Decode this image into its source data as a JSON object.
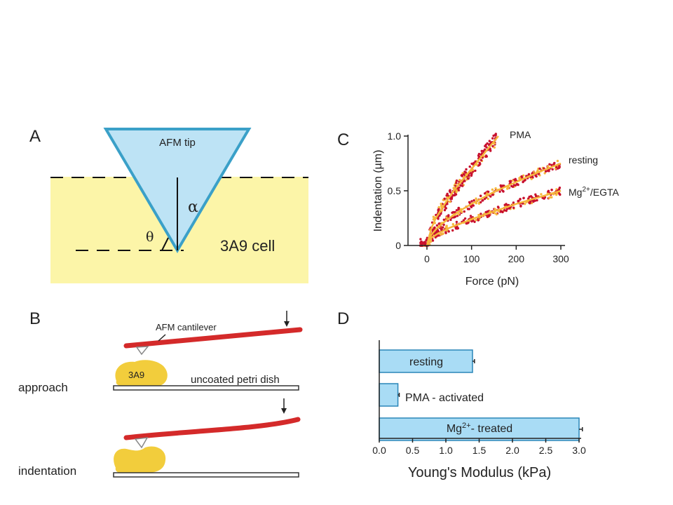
{
  "panels": {
    "a": {
      "letter": "A",
      "tip_label": "AFM tip",
      "alpha_symbol": "α",
      "theta_symbol": "θ",
      "cell_label": "3A9 cell",
      "colors": {
        "cell": "#fcf5a8",
        "tip": "#bde3f5",
        "tip_outline": "#3aa0c8"
      }
    },
    "b": {
      "letter": "B",
      "cantilever_label": "AFM cantilever",
      "cell_label": "3A9",
      "dish_label": "uncoated petri dish",
      "approach_label": "approach",
      "indentation_label": "indentation",
      "colors": {
        "cantilever": "#d42a2a",
        "cell": "#f2cd3c"
      }
    },
    "c": {
      "letter": "C",
      "series_labels": {
        "pma": "PMA",
        "resting": "resting",
        "mg_prefix": "Mg",
        "mg_sup": "2+",
        "mg_suffix": "/EGTA"
      },
      "colors": {
        "points": "#c8102e",
        "fit": "#f6b73c"
      }
    },
    "d": {
      "letter": "D",
      "bar_labels": {
        "resting": "resting",
        "pma": "PMA - activated",
        "mg_prefix": "Mg",
        "mg_sup": "2+",
        "mg_suffix": "- treated"
      },
      "colors": {
        "bar": "#a9dcf5",
        "bar_outline": "#2a86b8"
      }
    }
  },
  "chart_data": [
    {
      "panel": "C",
      "type": "scatter",
      "xlabel": "Force (pN)",
      "ylabel": "Indentation (µm)",
      "xlim": [
        -40,
        310
      ],
      "ylim": [
        0,
        1.05
      ],
      "xticks": [
        0,
        100,
        200,
        300
      ],
      "yticks": [
        0,
        0.5,
        1.0
      ],
      "ytick_labels": [
        "0",
        "0.5",
        "1.0"
      ],
      "series": [
        {
          "name": "PMA",
          "x": [
            0,
            10,
            20,
            40,
            60,
            80,
            100,
            120,
            140,
            160
          ],
          "y": [
            0,
            0.16,
            0.25,
            0.38,
            0.5,
            0.6,
            0.7,
            0.8,
            0.9,
            1.0
          ]
        },
        {
          "name": "resting",
          "x": [
            0,
            10,
            25,
            50,
            75,
            100,
            150,
            200,
            250,
            300
          ],
          "y": [
            0,
            0.1,
            0.17,
            0.25,
            0.32,
            0.38,
            0.49,
            0.58,
            0.67,
            0.75
          ]
        },
        {
          "name": "Mg2+/EGTA",
          "x": [
            0,
            10,
            25,
            50,
            75,
            100,
            150,
            200,
            250,
            300
          ],
          "y": [
            0,
            0.07,
            0.11,
            0.16,
            0.2,
            0.24,
            0.31,
            0.38,
            0.44,
            0.5
          ]
        }
      ]
    },
    {
      "panel": "D",
      "type": "bar",
      "orientation": "horizontal",
      "xlabel": "Young's Modulus (kPa)",
      "xlim": [
        0,
        3.0
      ],
      "xticks": [
        0.0,
        0.5,
        1.0,
        1.5,
        2.0,
        2.5,
        3.0
      ],
      "xtick_labels": [
        "0.0",
        "0.5",
        "1.0",
        "1.5",
        "2.0",
        "2.5",
        "3.0"
      ],
      "categories": [
        "resting",
        "PMA - activated",
        "Mg2+- treated"
      ],
      "values": [
        1.4,
        0.28,
        3.0
      ],
      "errors": [
        0.03,
        0.02,
        0.05
      ]
    }
  ]
}
